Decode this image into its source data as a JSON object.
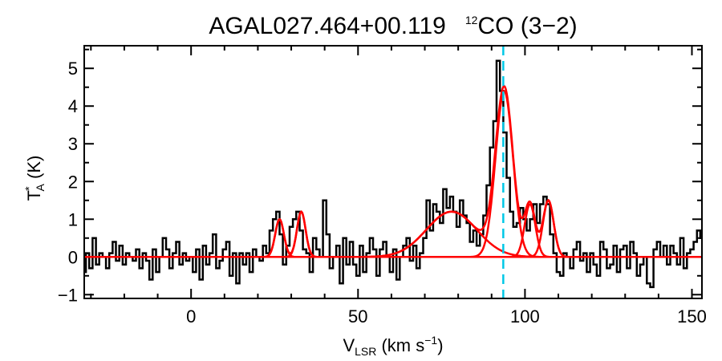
{
  "chart_data": {
    "type": "line",
    "title_source": "AGAL027.464+00.119",
    "title_line": "CO (3−2)",
    "title_isotope": "12",
    "xlabel": {
      "main": "V",
      "sub": "LSR",
      "unit": " (km s",
      "exp": "−1",
      "close": ")"
    },
    "ylabel": {
      "main": "T",
      "sup": "*",
      "sub": "A",
      "unit": " (K)"
    },
    "xlim": [
      -32,
      153
    ],
    "ylim": [
      -1.1,
      5.6
    ],
    "xticks": [
      0,
      50,
      100,
      150
    ],
    "yticks": [
      -1,
      0,
      1,
      2,
      3,
      4,
      5
    ],
    "xtick_labels": [
      "0",
      "50",
      "100",
      "150"
    ],
    "ytick_labels": [
      "−1",
      "0",
      "1",
      "2",
      "3",
      "4",
      "5"
    ],
    "vline_x": 93.5,
    "spectrum": {
      "x": [
        -32,
        -31,
        -30,
        -29,
        -28,
        -27,
        -26,
        -25,
        -24,
        -23,
        -22,
        -21,
        -20,
        -19,
        -18,
        -17,
        -16,
        -15,
        -14,
        -13,
        -12,
        -11,
        -10,
        -9,
        -8,
        -7,
        -6,
        -5,
        -4,
        -3,
        -2,
        -1,
        0,
        1,
        2,
        3,
        4,
        5,
        6,
        7,
        8,
        9,
        10,
        11,
        12,
        13,
        14,
        15,
        16,
        17,
        18,
        19,
        20,
        21,
        22,
        23,
        24,
        25,
        26,
        27,
        28,
        29,
        30,
        31,
        32,
        33,
        34,
        35,
        36,
        37,
        38,
        39,
        40,
        41,
        42,
        43,
        44,
        45,
        46,
        47,
        48,
        49,
        50,
        51,
        52,
        53,
        54,
        55,
        56,
        57,
        58,
        59,
        60,
        61,
        62,
        63,
        64,
        65,
        66,
        67,
        68,
        69,
        70,
        71,
        72,
        73,
        74,
        75,
        76,
        77,
        78,
        79,
        80,
        81,
        82,
        83,
        84,
        85,
        86,
        87,
        88,
        89,
        90,
        91,
        92,
        93,
        94,
        95,
        96,
        97,
        98,
        99,
        100,
        101,
        102,
        103,
        104,
        105,
        106,
        107,
        108,
        109,
        110,
        111,
        112,
        113,
        114,
        115,
        116,
        117,
        118,
        119,
        120,
        121,
        122,
        123,
        124,
        125,
        126,
        127,
        128,
        129,
        130,
        131,
        132,
        133,
        134,
        135,
        136,
        137,
        138,
        139,
        140,
        141,
        142,
        143,
        144,
        145,
        146,
        147,
        148,
        149,
        150,
        151,
        152,
        153
      ],
      "y": [
        -0.4,
        0.1,
        -0.3,
        0.5,
        -0.2,
        0.1,
        0.0,
        -0.3,
        0.1,
        0.4,
        -0.1,
        0.3,
        -0.2,
        0.1,
        0.0,
        -0.1,
        0.2,
        -0.3,
        0.1,
        -0.1,
        -0.6,
        0.2,
        -0.4,
        0.0,
        0.5,
        0.2,
        -0.3,
        0.1,
        0.4,
        -0.2,
        0.1,
        -0.1,
        0.0,
        -0.4,
        0.2,
        -0.6,
        0.3,
        -0.2,
        0.1,
        0.6,
        -0.3,
        -0.1,
        0.2,
        0.4,
        -0.5,
        0.1,
        -0.7,
        0.1,
        -0.2,
        0.1,
        -0.4,
        0.2,
        0.0,
        -0.1,
        0.3,
        0.1,
        0.7,
        1.0,
        1.2,
        0.6,
        -0.2,
        0.3,
        0.8,
        1.0,
        1.2,
        0.7,
        0.2,
        0.1,
        -0.4,
        0.5,
        0.2,
        0.0,
        1.5,
        0.6,
        -0.3,
        0.0,
        0.3,
        -0.7,
        0.5,
        -0.2,
        0.4,
        -0.2,
        -0.5,
        0.3,
        -0.4,
        0.1,
        0.5,
        0.2,
        -0.5,
        0.2,
        0.4,
        0.0,
        -0.4,
        0.2,
        -0.6,
        0.0,
        0.3,
        0.5,
        -0.1,
        0.3,
        -0.3,
        0.1,
        0.5,
        1.5,
        0.7,
        1.4,
        1.2,
        0.9,
        1.8,
        1.3,
        1.6,
        1.2,
        0.8,
        1.5,
        1.1,
        0.9,
        0.4,
        0.7,
        0.3,
        0.6,
        1.1,
        1.9,
        2.9,
        3.6,
        5.2,
        4.4,
        3.3,
        2.1,
        1.2,
        0.8,
        0.9,
        1.3,
        1.0,
        0.7,
        1.0,
        1.4,
        0.9,
        1.4,
        1.6,
        1.4,
        0.6,
        0.1,
        -0.4,
        -0.5,
        0.1,
        0.0,
        -0.3,
        0.2,
        0.4,
        -0.1,
        0.1,
        -0.4,
        0.1,
        -0.2,
        -0.5,
        0.4,
        0.2,
        -0.3,
        -0.2,
        0.3,
        -0.4,
        0.2,
        0.3,
        -0.3,
        0.4,
        0.1,
        -0.5,
        -0.2,
        0.0,
        -0.7,
        -0.8,
        0.2,
        0.4,
        0.0,
        0.3,
        -0.2,
        0.3,
        0.1,
        -0.2,
        0.5,
        -0.3,
        0.1,
        0.2,
        0.4,
        0.7,
        0.5
      ]
    },
    "gaussians": [
      {
        "amp": 1.0,
        "center": 26.5,
        "sigma": 1.3
      },
      {
        "amp": 1.2,
        "center": 33.0,
        "sigma": 1.3
      },
      {
        "amp": 1.2,
        "center": 78.0,
        "sigma": 7.5
      },
      {
        "amp": 4.4,
        "center": 93.8,
        "sigma": 2.6
      },
      {
        "amp": 1.4,
        "center": 101.5,
        "sigma": 1.6
      },
      {
        "amp": 1.5,
        "center": 107.0,
        "sigma": 1.6
      }
    ],
    "colors": {
      "spectrum": "#000000",
      "fit": "#ff0000",
      "vline": "#00c8e6"
    }
  }
}
